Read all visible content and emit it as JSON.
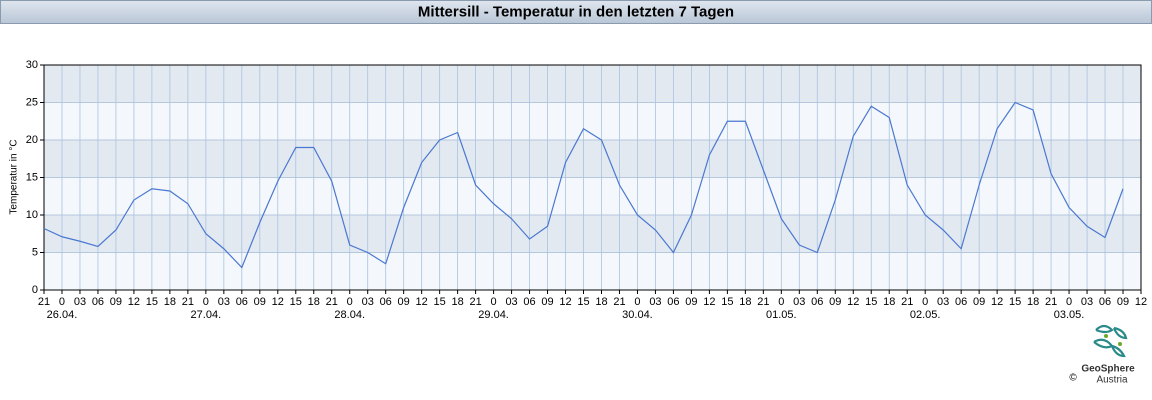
{
  "chart_data": {
    "type": "line",
    "title": "Mittersill - Temperatur in den letzten 7 Tagen",
    "y_label": "Temperatur in °C",
    "categories": [
      "21",
      "0",
      "03",
      "06",
      "09",
      "12",
      "15",
      "18",
      "21",
      "0",
      "03",
      "06",
      "09",
      "12",
      "15",
      "18",
      "21",
      "0",
      "03",
      "06",
      "09",
      "12",
      "15",
      "18",
      "21",
      "0",
      "03",
      "06",
      "09",
      "12",
      "15",
      "18",
      "21",
      "0",
      "03",
      "06",
      "09",
      "12",
      "15",
      "18",
      "21",
      "0",
      "03",
      "06",
      "09",
      "12",
      "15",
      "18",
      "21",
      "0",
      "03",
      "06",
      "09",
      "12",
      "15",
      "18",
      "21",
      "0",
      "03",
      "06",
      "09",
      "12"
    ],
    "category_dates": [
      null,
      "26.04.",
      null,
      null,
      null,
      null,
      null,
      null,
      null,
      "27.04.",
      null,
      null,
      null,
      null,
      null,
      null,
      null,
      "28.04.",
      null,
      null,
      null,
      null,
      null,
      null,
      null,
      "29.04.",
      null,
      null,
      null,
      null,
      null,
      null,
      null,
      "30.04.",
      null,
      null,
      null,
      null,
      null,
      null,
      null,
      "01.05.",
      null,
      null,
      null,
      null,
      null,
      null,
      null,
      "02.05.",
      null,
      null,
      null,
      null,
      null,
      null,
      null,
      "03.05.",
      null,
      null,
      null,
      null
    ],
    "series": [
      {
        "name": "Temperatur",
        "color": "#4a78d0",
        "values": [
          8.2,
          7.1,
          6.5,
          5.8,
          8.0,
          12.0,
          13.5,
          13.2,
          11.5,
          7.5,
          5.5,
          3.0,
          9.0,
          14.5,
          19,
          19,
          14.5,
          6,
          5,
          3.5,
          11,
          17,
          20,
          21,
          14,
          11.5,
          9.5,
          6.8,
          8.5,
          17,
          21.5,
          20,
          14,
          10,
          8,
          5,
          10,
          18,
          22.5,
          22.5,
          16,
          9.5,
          6,
          5,
          12,
          20.5,
          24.5,
          23,
          14,
          10,
          8,
          5.5,
          14,
          21.5,
          25,
          24,
          15.5,
          11,
          8.5,
          7,
          13.5,
          null
        ]
      }
    ],
    "ylim": [
      0,
      30
    ],
    "yticks": [
      0,
      5,
      10,
      15,
      20,
      25,
      30
    ],
    "grid": true,
    "band_colors": [
      "#f4f7fb",
      "#e3e9f1"
    ]
  },
  "footer": {
    "logo_name": "GeoSphere",
    "logo_sub": "Austria",
    "copyright": "©"
  }
}
